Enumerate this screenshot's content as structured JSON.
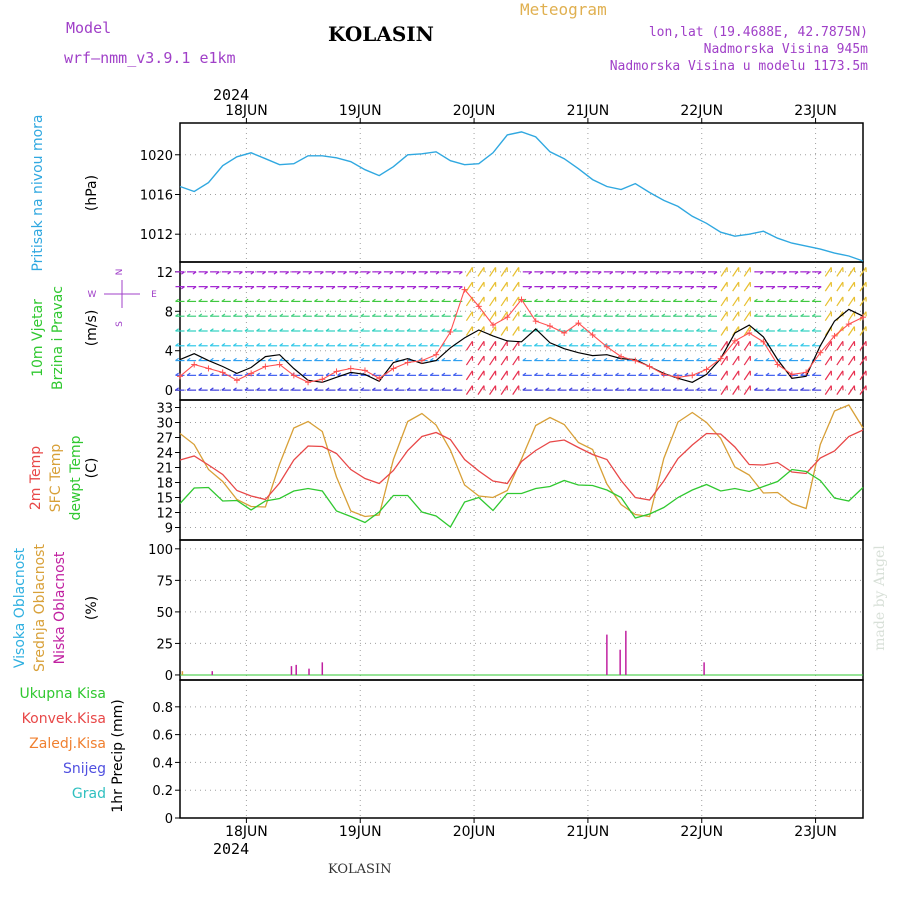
{
  "header": {
    "model_label": "Model",
    "model_name": "wrf–nmm_v3.9.1  e1km",
    "station": "KOLASIN",
    "meteogram": "Meteogram",
    "lonlat": "lon,lat (19.4688E, 42.7875N)",
    "elevation": "Nadmorska Visina 945m",
    "elevation_model": "Nadmorska Visina u modelu 1173.5m",
    "footer_station": "KOLASIN",
    "watermark": "made by Angel"
  },
  "time_axis": {
    "year": "2024",
    "days": [
      "18JUN",
      "19JUN",
      "20JUN",
      "21JUN",
      "22JUN",
      "23JUN"
    ],
    "start_hour": 0,
    "end_hour": 144
  },
  "colors": {
    "pressure": "#30a8e0",
    "temp2m": "#e84848",
    "sfc": "#d8a038",
    "dew": "#30c830",
    "wind_speed": "#000000",
    "gust": "#ff5050",
    "cloud_high": "#30b0e0",
    "cloud_mid": "#d8a038",
    "cloud_low": "#c020a0",
    "precip_total": "#30c830",
    "precip_conv": "#e84848",
    "precip_frozen": "#f08030",
    "precip_snow": "#5050e0",
    "precip_grad": "#30c0c0"
  },
  "chart_data": [
    {
      "type": "line",
      "ylabel": "(hPa)",
      "side_label": "Pritisak na nivou mora",
      "ylim": [
        1009.2,
        1023.2
      ],
      "yticks": [
        1012,
        1016,
        1020
      ],
      "series": [
        {
          "name": "Pritisak na nivou mora",
          "x": [
            0,
            3,
            6,
            9,
            12,
            15,
            18,
            21,
            24,
            27,
            30,
            33,
            36,
            39,
            42,
            45,
            48,
            51,
            54,
            57,
            60,
            63,
            66,
            69,
            72,
            75,
            78,
            81,
            84,
            87,
            90,
            93,
            96,
            99,
            102,
            105,
            108,
            111,
            114,
            117,
            120,
            123,
            126,
            129,
            132,
            135,
            138,
            141,
            144
          ],
          "values": [
            1016.8,
            1016.3,
            1017.2,
            1018.9,
            1019.8,
            1020.2,
            1019.6,
            1019.0,
            1019.1,
            1019.9,
            1019.9,
            1019.7,
            1019.3,
            1018.5,
            1017.9,
            1018.8,
            1020.0,
            1020.1,
            1020.3,
            1019.4,
            1019.0,
            1019.1,
            1020.2,
            1022.0,
            1022.3,
            1021.8,
            1020.3,
            1019.6,
            1018.6,
            1017.5,
            1016.8,
            1016.5,
            1017.1,
            1016.2,
            1015.4,
            1014.8,
            1013.8,
            1013.1,
            1012.2,
            1011.8,
            1012.0,
            1012.3,
            1011.6,
            1011.1,
            1010.8,
            1010.5,
            1010.1,
            1009.8,
            1009.3
          ]
        }
      ]
    },
    {
      "type": "line",
      "ylabel": "(m/s)",
      "side_label": [
        "10m Vjetar",
        "Brzina i Pravac"
      ],
      "compass": [
        "N",
        "W",
        "E",
        "S"
      ],
      "ylim": [
        -1,
        13
      ],
      "yticks": [
        0,
        4,
        8,
        12
      ],
      "series": [
        {
          "name": "speed",
          "x": [
            0,
            3,
            6,
            9,
            12,
            15,
            18,
            21,
            24,
            27,
            30,
            33,
            36,
            39,
            42,
            45,
            48,
            51,
            54,
            57,
            60,
            63,
            66,
            69,
            72,
            75,
            78,
            81,
            84,
            87,
            90,
            93,
            96,
            99,
            102,
            105,
            108,
            111,
            114,
            117,
            120,
            123,
            126,
            129,
            132,
            135,
            138,
            141,
            144
          ],
          "values": [
            3.1,
            3.7,
            3.0,
            2.4,
            1.7,
            2.3,
            3.4,
            3.6,
            2.2,
            1.0,
            0.8,
            1.3,
            1.8,
            1.6,
            0.9,
            2.8,
            3.2,
            2.7,
            3.0,
            4.3,
            5.3,
            6.1,
            5.5,
            5.0,
            4.9,
            6.2,
            4.8,
            4.2,
            3.8,
            3.5,
            3.6,
            3.2,
            3.1,
            2.4,
            1.7,
            1.2,
            0.8,
            1.6,
            3.2,
            5.8,
            6.6,
            5.4,
            3.1,
            1.2,
            1.4,
            4.5,
            7.0,
            8.2,
            7.5
          ]
        },
        {
          "name": "gust",
          "x": [
            0,
            3,
            6,
            9,
            12,
            15,
            18,
            21,
            24,
            27,
            30,
            33,
            36,
            39,
            42,
            45,
            48,
            51,
            54,
            57,
            60,
            63,
            66,
            69,
            72,
            75,
            78,
            81,
            84,
            87,
            90,
            93,
            96,
            99,
            102,
            105,
            108,
            111,
            114,
            117,
            120,
            123,
            126,
            129,
            132,
            135,
            138,
            141,
            144
          ],
          "values": [
            1.4,
            2.6,
            2.2,
            1.8,
            1.0,
            1.7,
            2.4,
            2.6,
            1.5,
            0.8,
            1.1,
            1.9,
            2.2,
            2.0,
            1.2,
            2.2,
            2.8,
            3.0,
            3.6,
            5.9,
            10.2,
            8.5,
            6.6,
            7.4,
            9.2,
            7.0,
            6.5,
            5.8,
            6.8,
            5.6,
            4.4,
            3.4,
            3.0,
            2.4,
            1.6,
            1.3,
            1.5,
            2.1,
            3.2,
            5.0,
            5.8,
            4.9,
            2.6,
            1.6,
            1.8,
            3.8,
            5.5,
            6.7,
            7.4
          ]
        }
      ]
    },
    {
      "type": "line",
      "ylabel": "(C)",
      "side_label": [
        "2m Temp",
        "SFC Temp",
        "dewpt Temp"
      ],
      "ylim": [
        6.5,
        34.5
      ],
      "yticks": [
        9,
        12,
        15,
        18,
        21,
        24,
        27,
        30,
        33
      ],
      "series": [
        {
          "name": "2m Temp",
          "x": [
            0,
            3,
            6,
            9,
            12,
            15,
            18,
            21,
            24,
            27,
            30,
            33,
            36,
            39,
            42,
            45,
            48,
            51,
            54,
            57,
            60,
            63,
            66,
            69,
            72,
            75,
            78,
            81,
            84,
            87,
            90,
            93,
            96,
            99,
            102,
            105,
            108,
            111,
            114,
            117,
            120,
            123,
            126,
            129,
            132,
            135,
            138,
            141,
            144
          ],
          "values": [
            22.5,
            23.3,
            21.5,
            19.6,
            16.4,
            15.3,
            14.6,
            17.9,
            22.5,
            25.3,
            25.2,
            23.8,
            20.6,
            18.8,
            17.8,
            20.4,
            24.4,
            27.2,
            28.0,
            26.6,
            22.6,
            20.3,
            18.3,
            17.8,
            22.2,
            24.4,
            26.1,
            26.5,
            25.0,
            23.6,
            22.6,
            18.4,
            15.0,
            14.5,
            18.3,
            22.8,
            25.5,
            27.8,
            27.7,
            25.1,
            21.6,
            21.5,
            22.0,
            20.1,
            19.8,
            22.9,
            24.3,
            27.2,
            28.5
          ]
        },
        {
          "name": "SFC Temp",
          "x": [
            0,
            3,
            6,
            9,
            12,
            15,
            18,
            21,
            24,
            27,
            30,
            33,
            36,
            39,
            42,
            45,
            48,
            51,
            54,
            57,
            60,
            63,
            66,
            69,
            72,
            75,
            78,
            81,
            84,
            87,
            90,
            93,
            96,
            99,
            102,
            105,
            108,
            111,
            114,
            117,
            120,
            123,
            126,
            129,
            132,
            135,
            138,
            141,
            144
          ],
          "values": [
            27.8,
            25.6,
            20.6,
            18.2,
            14.6,
            13.2,
            13.1,
            21.7,
            28.9,
            30.2,
            28.2,
            19.1,
            12.3,
            11.2,
            11.5,
            22.6,
            30.2,
            31.8,
            29.5,
            24.5,
            17.5,
            15.3,
            15.0,
            16.4,
            22.7,
            29.4,
            31.0,
            29.6,
            26.0,
            24.6,
            17.7,
            13.6,
            11.6,
            11.2,
            22.8,
            30.1,
            32.0,
            30.0,
            26.8,
            21.1,
            19.5,
            15.9,
            16.0,
            13.8,
            12.8,
            25.6,
            32.3,
            33.5,
            28.9
          ]
        },
        {
          "name": "dewpt Temp",
          "x": [
            0,
            3,
            6,
            9,
            12,
            15,
            18,
            21,
            24,
            27,
            30,
            33,
            36,
            39,
            42,
            45,
            48,
            51,
            54,
            57,
            60,
            63,
            66,
            69,
            72,
            75,
            78,
            81,
            84,
            87,
            90,
            93,
            96,
            99,
            102,
            105,
            108,
            111,
            114,
            117,
            120,
            123,
            126,
            129,
            132,
            135,
            138,
            141,
            144
          ],
          "values": [
            13.8,
            16.9,
            17.0,
            14.3,
            14.4,
            12.5,
            14.3,
            14.8,
            16.3,
            16.8,
            16.3,
            12.3,
            11.2,
            10.0,
            12.1,
            15.4,
            15.4,
            12.1,
            11.3,
            9.1,
            14.1,
            15.0,
            12.4,
            15.8,
            15.8,
            16.8,
            17.2,
            18.4,
            17.5,
            17.4,
            16.5,
            15.0,
            10.9,
            11.7,
            13.0,
            15.0,
            16.5,
            17.6,
            16.3,
            16.8,
            16.2,
            17.2,
            18.2,
            20.6,
            20.2,
            18.4,
            14.9,
            14.3,
            17.0
          ]
        }
      ]
    },
    {
      "type": "bar",
      "ylabel": "(%)",
      "side_label": [
        "Visoka Oblacnost",
        "Srednja Oblacnost",
        "Niska Oblacnost"
      ],
      "ylim": [
        -4,
        107
      ],
      "yticks": [
        0,
        25,
        50,
        75,
        100
      ],
      "series": [
        {
          "name": "Visoka Oblacnost",
          "x": [],
          "values": []
        },
        {
          "name": "Srednja Oblacnost",
          "x": [
            0.5
          ],
          "values": [
            3
          ]
        },
        {
          "name": "Niska Oblacnost",
          "x": [
            6.8,
            23.5,
            24.5,
            27.2,
            30.0,
            90.0,
            92.8,
            94.0,
            110.5
          ],
          "values": [
            3,
            7,
            8,
            5,
            10,
            32,
            20,
            35,
            10
          ]
        }
      ]
    },
    {
      "type": "bar",
      "ylabel": "1hr Precip (mm)",
      "side_label": [
        "Ukupna Kisa",
        "Konvek.Kisa",
        "Zaledj.Kisa",
        "Snijeg",
        "Grad"
      ],
      "ylim": [
        0,
        0.993
      ],
      "yticks": [
        0,
        0.2,
        0.4,
        0.6,
        0.8
      ],
      "series": [
        {
          "name": "Ukupna Kisa",
          "x": [],
          "values": []
        },
        {
          "name": "Konvek.Kisa",
          "x": [],
          "values": []
        },
        {
          "name": "Zaledj.Kisa",
          "x": [],
          "values": []
        },
        {
          "name": "Snijeg",
          "x": [],
          "values": []
        },
        {
          "name": "Grad",
          "x": [],
          "values": []
        }
      ]
    }
  ]
}
